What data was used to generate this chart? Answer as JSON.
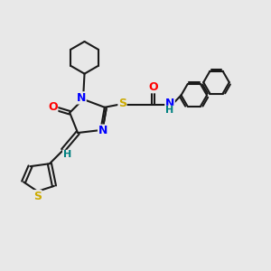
{
  "bg_color": "#e8e8e8",
  "bond_color": "#1a1a1a",
  "atom_colors": {
    "N": "#0000ff",
    "O": "#ff0000",
    "S": "#ccaa00",
    "H": "#008080",
    "C": "#1a1a1a"
  },
  "line_width": 1.5,
  "font_size": 8.5
}
